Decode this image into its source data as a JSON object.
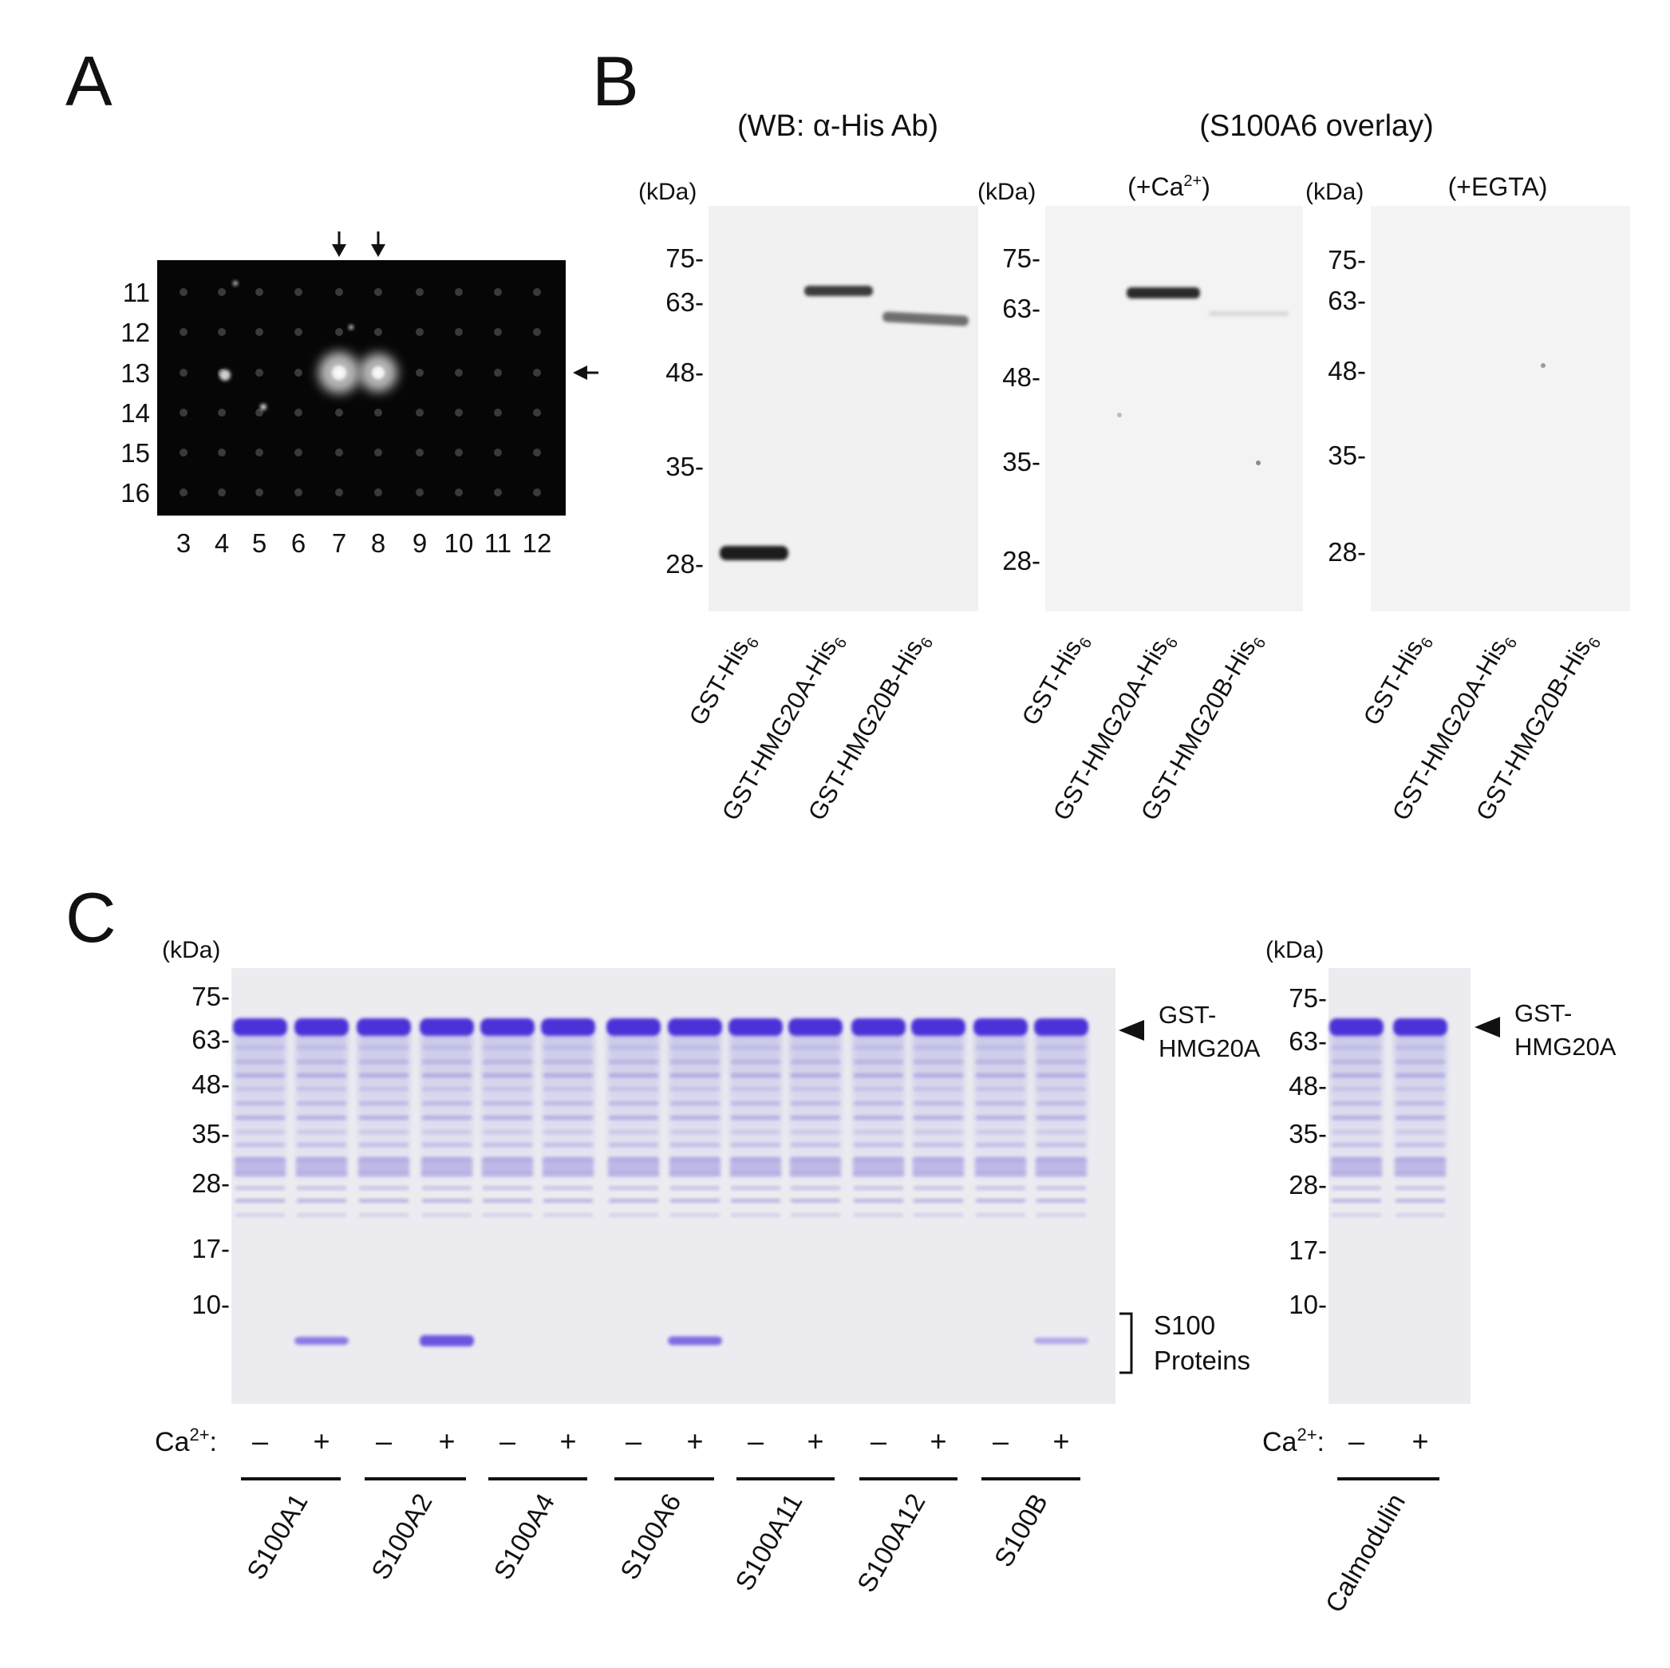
{
  "panels": {
    "a": "A",
    "b": "B",
    "c": "C"
  },
  "panel_a": {
    "row_labels": [
      "11",
      "12",
      "13",
      "14",
      "15",
      "16"
    ],
    "col_labels": [
      "3",
      "4",
      "5",
      "6",
      "7",
      "8",
      "9",
      "10",
      "11",
      "12"
    ]
  },
  "panel_b": {
    "wb_title": "(WB: α-His Ab)",
    "overlay_title": "(S100A6 overlay)",
    "ca_cond": {
      "pre": "(+Ca",
      "sup": "2+",
      "post": ")"
    },
    "egta_cond": "(+EGTA)",
    "kda_unit": "(kDa)",
    "mw_markers": [
      "75-",
      "63-",
      "48-",
      "35-",
      "28-"
    ],
    "lanes": [
      {
        "main": "GST-His",
        "sub": "6"
      },
      {
        "main": "GST-HMG20A-His",
        "sub": "6"
      },
      {
        "main": "GST-HMG20B-His",
        "sub": "6"
      }
    ]
  },
  "panel_c": {
    "kda_unit": "(kDa)",
    "mw_markers": [
      "75-",
      "63-",
      "48-",
      "35-",
      "28-",
      "17-",
      "10-"
    ],
    "gst_label": [
      "GST-",
      "HMG20A"
    ],
    "s100_label": [
      "S100",
      "Proteins"
    ],
    "ca_label": {
      "main": "Ca",
      "sup": "2+",
      "colon": ":"
    },
    "minus": "–",
    "plus": "+",
    "proteins": [
      "S100A1",
      "S100A2",
      "S100A4",
      "S100A6",
      "S100A11",
      "S100A12",
      "S100B"
    ],
    "calmodulin": "Calmodulin"
  }
}
